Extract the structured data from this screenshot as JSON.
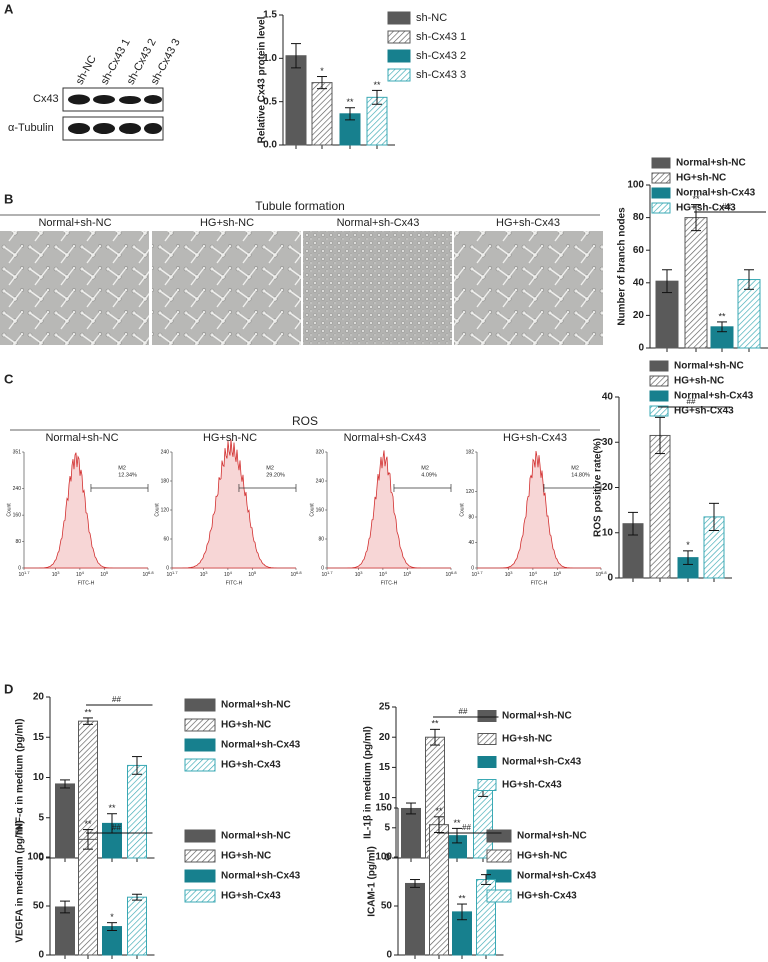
{
  "panel_labels": [
    "A",
    "B",
    "C",
    "D"
  ],
  "blot": {
    "lanes": [
      "sh-NC",
      "sh-Cx43 1",
      "sh-Cx43 2",
      "sh-Cx43 3"
    ],
    "rows": [
      "Cx43",
      "α-Tubulin"
    ]
  },
  "tubule": {
    "title": "Tubule formation",
    "captions": [
      "Normal+sh-NC",
      "HG+sh-NC",
      "Normal+sh-Cx43",
      "HG+sh-Cx43"
    ]
  },
  "ros": {
    "title": "ROS",
    "xlabel": "FITC-H",
    "ylabel": "Count",
    "xticks": [
      {
        "base": "10",
        "exp": "1.7"
      },
      {
        "base": "10",
        "exp": "3"
      },
      {
        "base": "10",
        "exp": "4"
      },
      {
        "base": "10",
        "exp": "5"
      },
      {
        "base": "10",
        "exp": "6.8"
      }
    ],
    "plots": [
      {
        "caption": "Normal+sh-NC",
        "gate": "M2",
        "percent": "12.34%",
        "yticks": [
          351,
          240,
          160,
          80,
          0
        ]
      },
      {
        "caption": "HG+sh-NC",
        "gate": "M2",
        "percent": "29.20%",
        "yticks": [
          240,
          180,
          120,
          60,
          0
        ]
      },
      {
        "caption": "Normal+sh-Cx43",
        "gate": "M2",
        "percent": "4.09%",
        "yticks": [
          320,
          240,
          160,
          80,
          0
        ]
      },
      {
        "caption": "HG+sh-Cx43",
        "gate": "M2",
        "percent": "14.80%",
        "yticks": [
          182,
          120,
          80,
          40,
          0
        ]
      }
    ]
  },
  "chart_data": [
    {
      "type": "bar",
      "ylabel": "Relative Cx43 protein level",
      "ylim": [
        0,
        1.5
      ],
      "yticks": [
        {
          "value": 0,
          "label": "0.0"
        },
        {
          "value": 0.5,
          "label": "0.5"
        },
        {
          "value": 1,
          "label": "1.0"
        },
        {
          "value": 1.5,
          "label": "1.5"
        }
      ],
      "series": [
        {
          "name": "sh-NC",
          "color": "#5a5a5a",
          "hatch": false,
          "values": [
            1.03
          ],
          "errors": [
            0.14
          ],
          "annotations": [
            null
          ]
        },
        {
          "name": "sh-Cx43 1",
          "color": "#5a5a5a",
          "hatch": true,
          "values": [
            0.72
          ],
          "errors": [
            0.07
          ],
          "annotations": [
            "*"
          ]
        },
        {
          "name": "sh-Cx43 2",
          "color": "#17808e",
          "hatch": false,
          "values": [
            0.36
          ],
          "errors": [
            0.07
          ],
          "annotations": [
            "**"
          ]
        },
        {
          "name": "sh-Cx43 3",
          "color": "#3aa9b4",
          "hatch": true,
          "values": [
            0.55
          ],
          "errors": [
            0.08
          ],
          "annotations": [
            "**"
          ]
        }
      ]
    },
    {
      "type": "bar",
      "ylabel": "Number of branch nodes",
      "ylim": [
        0,
        100
      ],
      "yticks": [
        0,
        20,
        40,
        60,
        80,
        100
      ],
      "bracket_label": "##",
      "series": [
        {
          "name": "Normal+sh-NC",
          "color": "#5a5a5a",
          "hatch": false,
          "values": [
            41
          ],
          "errors": [
            7
          ],
          "annotations": [
            null
          ]
        },
        {
          "name": "HG+sh-NC",
          "color": "#5a5a5a",
          "hatch": true,
          "values": [
            80
          ],
          "errors": [
            8
          ],
          "annotations": [
            "**"
          ]
        },
        {
          "name": "Normal+sh-Cx43",
          "color": "#17808e",
          "hatch": false,
          "values": [
            13
          ],
          "errors": [
            3
          ],
          "annotations": [
            "**"
          ]
        },
        {
          "name": "HG+sh-Cx43",
          "color": "#3aa9b4",
          "hatch": true,
          "values": [
            42
          ],
          "errors": [
            6
          ],
          "annotations": [
            null
          ]
        }
      ]
    },
    {
      "type": "bar",
      "ylabel": "ROS positive rate(%)",
      "ylim": [
        0,
        40
      ],
      "yticks": [
        0,
        10,
        20,
        30,
        40
      ],
      "bracket_label": "##",
      "series": [
        {
          "name": "Normal+sh-NC",
          "color": "#5a5a5a",
          "hatch": false,
          "values": [
            12
          ],
          "errors": [
            2.5
          ],
          "annotations": [
            null
          ]
        },
        {
          "name": "HG+sh-NC",
          "color": "#5a5a5a",
          "hatch": true,
          "values": [
            31.5
          ],
          "errors": [
            4
          ],
          "annotations": [
            "**"
          ]
        },
        {
          "name": "Normal+sh-Cx43",
          "color": "#17808e",
          "hatch": false,
          "values": [
            4.5
          ],
          "errors": [
            1.5
          ],
          "annotations": [
            "*"
          ]
        },
        {
          "name": "HG+sh-Cx43",
          "color": "#3aa9b4",
          "hatch": true,
          "values": [
            13.5
          ],
          "errors": [
            3
          ],
          "annotations": [
            null
          ]
        }
      ]
    },
    {
      "type": "bar",
      "ylabel": "TNF-α in medium (pg/ml)",
      "ylim": [
        0,
        20
      ],
      "yticks": [
        0,
        5,
        10,
        15,
        20
      ],
      "bracket_label": "##",
      "series": [
        {
          "name": "Normal+sh-NC",
          "color": "#5a5a5a",
          "hatch": false,
          "values": [
            9.2
          ],
          "errors": [
            0.5
          ],
          "annotations": [
            null
          ]
        },
        {
          "name": "HG+sh-NC",
          "color": "#5a5a5a",
          "hatch": true,
          "values": [
            17
          ],
          "errors": [
            0.4
          ],
          "annotations": [
            "**"
          ]
        },
        {
          "name": "Normal+sh-Cx43",
          "color": "#17808e",
          "hatch": false,
          "values": [
            4.3
          ],
          "errors": [
            1.2
          ],
          "annotations": [
            "**"
          ]
        },
        {
          "name": "HG+sh-Cx43",
          "color": "#3aa9b4",
          "hatch": true,
          "values": [
            11.5
          ],
          "errors": [
            1.1
          ],
          "annotations": [
            null
          ]
        }
      ]
    },
    {
      "type": "bar",
      "ylabel": "IL-1β in medium (pg/ml)",
      "ylim": [
        0,
        25
      ],
      "yticks": [
        0,
        5,
        10,
        15,
        20,
        25
      ],
      "bracket_label": "##",
      "series": [
        {
          "name": "Normal+sh-NC",
          "color": "#5a5a5a",
          "hatch": false,
          "values": [
            8.2
          ],
          "errors": [
            0.9
          ],
          "annotations": [
            null
          ]
        },
        {
          "name": "HG+sh-NC",
          "color": "#5a5a5a",
          "hatch": true,
          "values": [
            20
          ],
          "errors": [
            1.3
          ],
          "annotations": [
            "**"
          ]
        },
        {
          "name": "Normal+sh-Cx43",
          "color": "#17808e",
          "hatch": false,
          "values": [
            3.7
          ],
          "errors": [
            1.2
          ],
          "annotations": [
            "**"
          ]
        },
        {
          "name": "HG+sh-Cx43",
          "color": "#3aa9b4",
          "hatch": true,
          "values": [
            11.3
          ],
          "errors": [
            1.1
          ],
          "annotations": [
            null
          ]
        }
      ]
    },
    {
      "type": "bar",
      "ylabel": "VEGFA in medium (pg/ml)",
      "ylim": [
        0,
        150
      ],
      "yticks": [
        0,
        50,
        100
      ],
      "bracket_label": "##",
      "series": [
        {
          "name": "Normal+sh-NC",
          "color": "#5a5a5a",
          "hatch": false,
          "values": [
            49
          ],
          "errors": [
            6
          ],
          "annotations": [
            null
          ]
        },
        {
          "name": "HG+sh-NC",
          "color": "#5a5a5a",
          "hatch": true,
          "values": [
            118
          ],
          "errors": [
            10
          ],
          "annotations": [
            "**"
          ]
        },
        {
          "name": "Normal+sh-Cx43",
          "color": "#17808e",
          "hatch": false,
          "values": [
            29
          ],
          "errors": [
            4
          ],
          "annotations": [
            "*"
          ]
        },
        {
          "name": "HG+sh-Cx43",
          "color": "#3aa9b4",
          "hatch": true,
          "values": [
            59
          ],
          "errors": [
            3
          ],
          "annotations": [
            null
          ]
        }
      ]
    },
    {
      "type": "bar",
      "ylabel": "ICAM-1 (pg/ml)",
      "ylim": [
        0,
        150
      ],
      "yticks": [
        0,
        50,
        100,
        150
      ],
      "bracket_label": "##",
      "series": [
        {
          "name": "Normal+sh-NC",
          "color": "#5a5a5a",
          "hatch": false,
          "values": [
            73
          ],
          "errors": [
            4
          ],
          "annotations": [
            null
          ]
        },
        {
          "name": "HG+sh-NC",
          "color": "#5a5a5a",
          "hatch": true,
          "values": [
            133
          ],
          "errors": [
            8
          ],
          "annotations": [
            "**"
          ]
        },
        {
          "name": "Normal+sh-Cx43",
          "color": "#17808e",
          "hatch": false,
          "values": [
            44
          ],
          "errors": [
            8
          ],
          "annotations": [
            "**"
          ]
        },
        {
          "name": "HG+sh-Cx43",
          "color": "#3aa9b4",
          "hatch": true,
          "values": [
            77
          ],
          "errors": [
            5
          ],
          "annotations": [
            null
          ]
        }
      ]
    }
  ]
}
